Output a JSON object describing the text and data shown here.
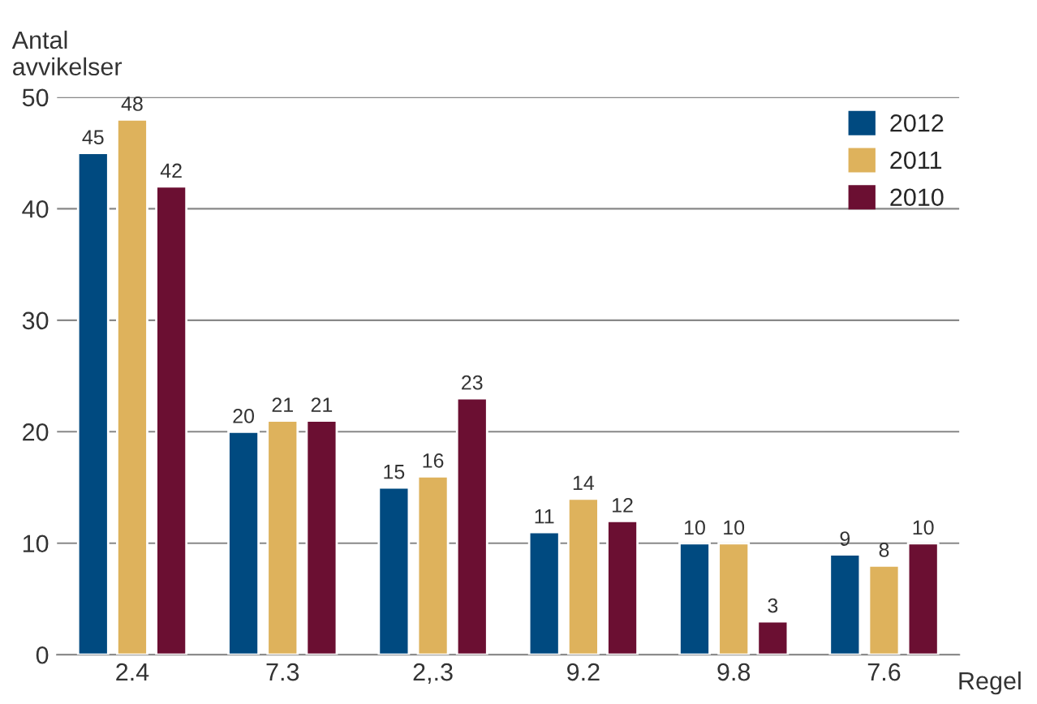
{
  "chart_data": {
    "type": "bar",
    "categories": [
      "2.4",
      "7.3",
      "2,.3",
      "9.2",
      "9.8",
      "7.6"
    ],
    "series": [
      {
        "name": "2012",
        "color": "#004a80",
        "values": [
          45,
          20,
          15,
          11,
          10,
          9
        ]
      },
      {
        "name": "2011",
        "color": "#deb25c",
        "values": [
          48,
          21,
          16,
          14,
          10,
          8
        ]
      },
      {
        "name": "2010",
        "color": "#6b0f32",
        "values": [
          42,
          21,
          23,
          12,
          3,
          10
        ]
      }
    ],
    "xlabel": "Regel",
    "ylabel": "Antal\navvikelser",
    "ylim": [
      0,
      50
    ],
    "yticks": [
      0,
      10,
      20,
      30,
      40,
      50
    ],
    "grid": "y",
    "legend": "top right",
    "data_labels": true
  }
}
